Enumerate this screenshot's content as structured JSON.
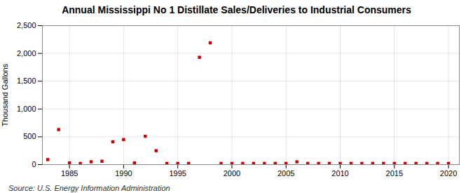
{
  "chart_data": {
    "type": "scatter",
    "title": "Annual Mississippi No 1 Distillate Sales/Deliveries to Industrial Consumers",
    "ylabel": "Thousand Gallons",
    "source": "Source: U.S. Energy Information Administration",
    "x": [
      1983,
      1984,
      1985,
      1986,
      1987,
      1988,
      1989,
      1990,
      1991,
      1992,
      1993,
      1994,
      1995,
      1996,
      1997,
      1998,
      1999,
      2000,
      2001,
      2002,
      2003,
      2004,
      2005,
      2006,
      2007,
      2008,
      2009,
      2010,
      2011,
      2012,
      2013,
      2014,
      2015,
      2016,
      2017,
      2018,
      2019,
      2020
    ],
    "values": [
      90,
      630,
      30,
      20,
      50,
      60,
      410,
      450,
      30,
      510,
      250,
      20,
      20,
      20,
      1930,
      2190,
      20,
      20,
      20,
      20,
      20,
      20,
      20,
      50,
      20,
      20,
      20,
      20,
      20,
      20,
      20,
      20,
      20,
      20,
      20,
      20,
      20,
      20
    ],
    "color": "#cc0000",
    "marker": "square",
    "xlim": [
      1982.5,
      2021
    ],
    "xticks": [
      1985,
      1990,
      1995,
      2000,
      2005,
      2010,
      2015,
      2020
    ],
    "ylim": [
      0,
      2500
    ],
    "yticks": [
      0,
      500,
      {
        "value": 1000,
        "label": "1,000"
      },
      {
        "value": 1500,
        "label": "1,500"
      },
      {
        "value": 2000,
        "label": "2,000"
      },
      {
        "value": 2500,
        "label": "2,500"
      }
    ],
    "grid": true
  }
}
